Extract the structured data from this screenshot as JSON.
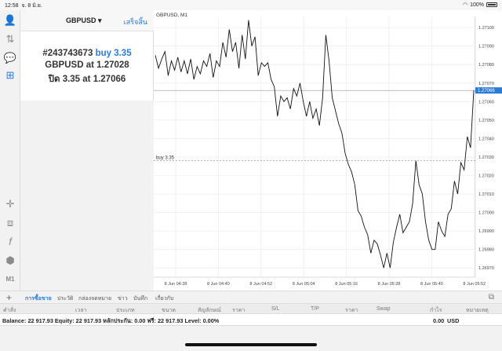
{
  "status_bar": {
    "time": "12:58",
    "date": "จ. 8 มิ.ย.",
    "battery": "100%"
  },
  "order_panel": {
    "symbol": "GBPUSD",
    "dropdown_arrow": "▾",
    "done_label": "เสร็จสิ้น",
    "line1_id": "#243743673",
    "line1_action": "buy 3.35",
    "line2": "GBPUSD at 1.27028",
    "line3": "ปิด 3.35 at 1.27066"
  },
  "chart": {
    "title": "GBPUSD, M1",
    "order_line_label": "buy 3.35",
    "current_price": "1.27066",
    "price_labels": [
      "1.27100",
      "1.27090",
      "1.27080",
      "1.27070",
      "1.27060",
      "1.27050",
      "1.27040",
      "1.27030",
      "1.27020",
      "1.27010",
      "1.27000",
      "1.26990",
      "1.26980",
      "1.26970"
    ],
    "time_labels": [
      "8 Jun 04:28",
      "8 Jun 04:40",
      "8 Jun 04:52",
      "8 Jun 05:04",
      "8 Jun 05:16",
      "8 Jun 05:28",
      "8 Jun 05:40",
      "8 Jun 05:52"
    ]
  },
  "chart_data": {
    "type": "line",
    "title": "GBPUSD, M1",
    "ylim": [
      1.26965,
      1.27106
    ],
    "buy_level": 1.27028,
    "close_level": 1.27066,
    "y": [
      1.27085,
      1.27078,
      1.27083,
      1.27087,
      1.27074,
      1.27082,
      1.27077,
      1.27084,
      1.27076,
      1.27082,
      1.27075,
      1.27083,
      1.27072,
      1.27079,
      1.27075,
      1.27082,
      1.27079,
      1.27086,
      1.27073,
      1.27082,
      1.27079,
      1.27092,
      1.27084,
      1.27099,
      1.27087,
      1.27092,
      1.27078,
      1.27096,
      1.27083,
      1.27104,
      1.2709,
      1.27095,
      1.27074,
      1.27081,
      1.27079,
      1.27081,
      1.27072,
      1.27068,
      1.27052,
      1.27063,
      1.2706,
      1.27062,
      1.27056,
      1.27067,
      1.27063,
      1.2707,
      1.2706,
      1.27052,
      1.2706,
      1.27051,
      1.27056,
      1.27047,
      1.27062,
      1.27096,
      1.27082,
      1.27062,
      1.27055,
      1.27048,
      1.27043,
      1.27032,
      1.27026,
      1.27022,
      1.27015,
      1.27001,
      1.26998,
      1.26992,
      1.26988,
      1.26978,
      1.26985,
      1.26983,
      1.26977,
      1.2697,
      1.26978,
      1.2697,
      1.26984,
      1.26992,
      1.26999,
      1.26989,
      1.26992,
      1.26995,
      1.27005,
      1.27028,
      1.27015,
      1.2701,
      1.26995,
      1.26985,
      1.2698,
      1.2698,
      1.26995,
      1.2699,
      1.26987,
      1.26999,
      1.27002,
      1.27017,
      1.2701,
      1.27027,
      1.27023,
      1.27041,
      1.27035,
      1.27066
    ]
  },
  "toolbar": {
    "plus": "+",
    "tabs": [
      "การซื้อขาย",
      "ประวัติ",
      "กล่องจดหมาย",
      "ข่าว",
      "บันทึก",
      "เกี่ยวกับ"
    ]
  },
  "table_header": [
    "คำสั่ง",
    "เวลา",
    "ประเภท",
    "ขนาด",
    "สัญลักษณ์",
    "ราคา",
    "S/L",
    "T/P",
    "ราคา",
    "Swap",
    "กำไร",
    "หมายเหตุ"
  ],
  "balance": {
    "text": "Balance: 22 917.93  Equity: 22 917.93  หลักประกัน: 0.00  ฟรี: 22 917.93  Level: 0.00%",
    "profit": "0.00",
    "currency": "USD"
  },
  "colors": {
    "accent": "#2b7bd6",
    "line": "#111111",
    "grid": "#e9e9e9"
  }
}
